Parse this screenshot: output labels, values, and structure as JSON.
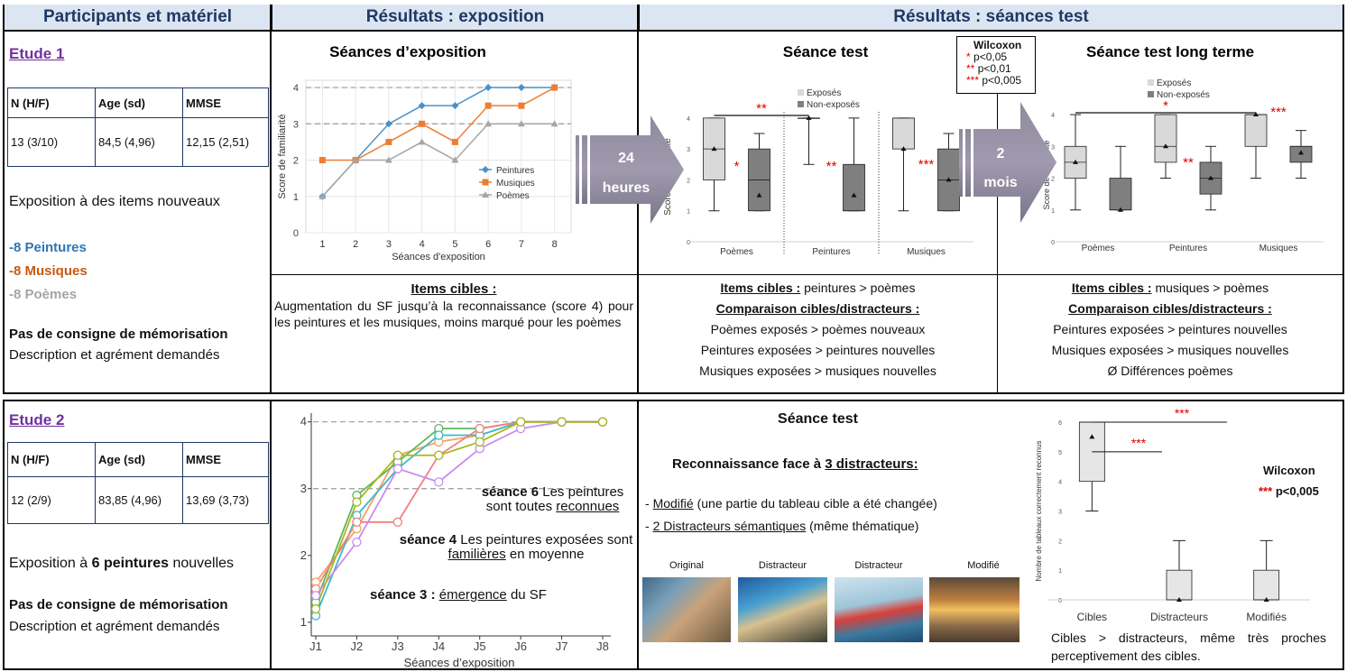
{
  "headers": {
    "participants": "Participants et matériel",
    "exposition": "Résultats : exposition",
    "tests": "Résultats : séances test"
  },
  "etude1": {
    "title": "Etude 1",
    "table": {
      "header": [
        "N (H/F)",
        "Age (sd)",
        "MMSE"
      ],
      "rows": [
        [
          "13 (3/10)",
          "84,5 (4,96)",
          "12,15 (2,51)"
        ]
      ]
    },
    "exposure": "Exposition à des items nouveaux",
    "items": [
      {
        "text": "-8 Peintures",
        "color": "#2e75b6"
      },
      {
        "text": "-8 Musiques",
        "color": "#c55a11"
      },
      {
        "text": "-8 Poèmes",
        "color": "#a5a5a5"
      }
    ],
    "instruction": "Pas de consigne de mémorisation",
    "task": "Description et agrément demandés"
  },
  "arrows": [
    {
      "lines": [
        "24",
        "heures"
      ]
    },
    {
      "lines": [
        "2",
        "mois"
      ]
    }
  ],
  "wilcoxon_legend": {
    "title": "Wilcoxon",
    "rows": [
      {
        "stars": "*",
        "text": "p<0,05"
      },
      {
        "stars": "**",
        "text": "p<0,01"
      },
      {
        "stars": "***",
        "text": "p<0,005"
      }
    ]
  },
  "conclusions": {
    "exposition": {
      "heading": "Items cibles :",
      "text": "Augmentation du SF jusqu’à la reconnaissance (score 4) pour les peintures et les musiques, moins marqué pour les poèmes"
    },
    "test": {
      "target_heading": "Items cibles :",
      "target_text": "peintures > poèmes",
      "comparison_heading": "Comparaison cibles/distracteurs :",
      "comparisons": [
        "Poèmes exposés > poèmes nouveaux",
        "Peintures exposées > peintures nouvelles",
        "Musiques exposées > musiques nouvelles"
      ]
    },
    "long_term": {
      "target_heading": "Items cibles :",
      "target_text": "musiques > poèmes",
      "comparison_heading": "Comparaison cibles/distracteurs :",
      "comparisons": [
        "Peintures exposées > peintures nouvelles",
        "Musiques exposées > musiques nouvelles",
        "Ø Différences poèmes"
      ]
    }
  },
  "etude2": {
    "title": "Etude 2",
    "table": {
      "header": [
        "N (H/F)",
        "Age (sd)",
        "MMSE"
      ],
      "rows": [
        [
          "12 (2/9)",
          "83,85 (4,96)",
          "13,69 (3,73)"
        ]
      ]
    },
    "exposure": {
      "before": "Exposition à",
      "bold": "6 peintures",
      "after": "nouvelles"
    },
    "instruction": "Pas de consigne de mémorisation",
    "task": "Description et agrément demandés",
    "test": {
      "title": "Séance test",
      "heading": {
        "text": "Reconnaissance face à",
        "underline": "3 distracteurs:"
      },
      "list": [
        {
          "bullet": "-",
          "underline": "Modifié",
          "text": "(une partie du tableau cible a été changée)"
        },
        {
          "bullet": "-",
          "underline": "2 Distracteurs sémantiques",
          "text": "(même thématique)"
        }
      ],
      "images": [
        {
          "caption": "Original"
        },
        {
          "caption": "Distracteur"
        },
        {
          "caption": "Distracteur"
        },
        {
          "caption": "Modifié"
        }
      ]
    },
    "wilcoxon": {
      "title": "Wilcoxon",
      "stars": "***",
      "text": "p<0,005"
    },
    "conclusion": "Cibles > distracteurs, même très proches perceptivement des cibles."
  },
  "chart_data": [
    {
      "type": "line",
      "title": "Séances d’exposition",
      "x_label": "Séances d'exposition",
      "y_label": "Score de familiarité",
      "x": [
        1,
        2,
        3,
        4,
        5,
        6,
        7,
        8
      ],
      "xlim": [
        0.5,
        8.5
      ],
      "xticks": [
        1,
        2,
        3,
        4,
        5,
        6,
        7,
        8
      ],
      "ylim": [
        0,
        4.2
      ],
      "yticks": [
        0,
        1,
        2,
        3,
        4
      ],
      "grid": true,
      "reference_lines": [
        3,
        4
      ],
      "legend": "right",
      "series": [
        {
          "name": "Peintures",
          "color": "#4a90c8",
          "marker": "diamond",
          "values": [
            1,
            2,
            3,
            3.5,
            3.5,
            4,
            4,
            4
          ]
        },
        {
          "name": "Musiques",
          "color": "#ed7d31",
          "marker": "square",
          "values": [
            2,
            2,
            2.5,
            3,
            2.5,
            3.5,
            3.5,
            4
          ]
        },
        {
          "name": "Poèmes",
          "color": "#a5a5a5",
          "marker": "triangle",
          "values": [
            1,
            2,
            2,
            2.5,
            2,
            3,
            3,
            3
          ]
        }
      ]
    },
    {
      "type": "box",
      "title": "Séance test",
      "y_label": "Score de familiarité",
      "categories": [
        "Poèmes",
        "Peintures",
        "Musiques"
      ],
      "ylim": [
        0,
        4.2
      ],
      "yticks": [
        0,
        1,
        2,
        3,
        4
      ],
      "series": [
        {
          "name": "Exposés",
          "color": "#d9d9d9",
          "values": [
            {
              "min": 1,
              "q1": 2,
              "median": 3,
              "q3": 4,
              "max": 4,
              "mean": 3
            },
            {
              "min": 2.5,
              "q1": 4,
              "median": 4,
              "q3": 4,
              "max": 4,
              "mean": 4
            },
            {
              "min": 1,
              "q1": 3,
              "median": 4,
              "q3": 4,
              "max": 4,
              "mean": 3
            }
          ]
        },
        {
          "name": "Non-exposés",
          "color": "#7f7f7f",
          "values": [
            {
              "min": 1,
              "q1": 1,
              "median": 2,
              "q3": 3,
              "max": 3.5,
              "mean": 1.5
            },
            {
              "min": 1,
              "q1": 1,
              "median": 1,
              "q3": 2.5,
              "max": 4,
              "mean": 1.5
            },
            {
              "min": 1,
              "q1": 1,
              "median": 2,
              "q3": 3,
              "max": 3.5,
              "mean": 2
            }
          ]
        }
      ],
      "significance": [
        "*",
        "**",
        "***"
      ],
      "bracket": "**"
    },
    {
      "type": "box",
      "title": "Séance test long terme",
      "y_label": "Score de familiarité",
      "categories": [
        "Poèmes",
        "Peintures",
        "Musiques"
      ],
      "ylim": [
        0,
        4.2
      ],
      "yticks": [
        0,
        1,
        2,
        3,
        4
      ],
      "series": [
        {
          "name": "Exposés",
          "color": "#d9d9d9",
          "values": [
            {
              "min": 1,
              "q1": 2,
              "median": 2.5,
              "q3": 3,
              "max": 4,
              "mean": 2.5
            },
            {
              "min": 2,
              "q1": 2.5,
              "median": 3,
              "q3": 4,
              "max": 4,
              "mean": 3
            },
            {
              "min": 2,
              "q1": 3,
              "median": 4,
              "q3": 4,
              "max": 4,
              "mean": 4
            }
          ]
        },
        {
          "name": "Non-exposés",
          "color": "#7f7f7f",
          "values": [
            {
              "min": 1,
              "q1": 1,
              "median": 1,
              "q3": 2,
              "max": 3,
              "mean": 1
            },
            {
              "min": 1,
              "q1": 1.5,
              "median": 2,
              "q3": 2.5,
              "max": 3,
              "mean": 2
            },
            {
              "min": 2,
              "q1": 2.5,
              "median": 3,
              "q3": 3,
              "max": 3.5,
              "mean": 2.8
            }
          ]
        }
      ],
      "significance": [
        null,
        "**",
        "***"
      ],
      "bracket": "*"
    },
    {
      "type": "line",
      "x_label": "Séances d’exposition",
      "categories": [
        "J1",
        "J2",
        "J3",
        "J4",
        "J5",
        "J6",
        "J7",
        "J8"
      ],
      "ylim": [
        0.85,
        4.05
      ],
      "yticks": [
        1,
        2,
        3,
        4
      ],
      "grid": false,
      "reference_lines": [
        3,
        4
      ],
      "series": [
        {
          "color": "#f4a460",
          "marker": "circle",
          "values": [
            1.6,
            2.4,
            3.5,
            3.7,
            3.8,
            4,
            4,
            4
          ]
        },
        {
          "color": "#5cb85c",
          "marker": "circle",
          "values": [
            1.3,
            2.9,
            3.4,
            3.9,
            3.9,
            4,
            4,
            4
          ]
        },
        {
          "color": "#3fb8c9",
          "marker": "circle",
          "values": [
            1.1,
            2.6,
            3.3,
            3.8,
            3.8,
            4,
            4,
            4
          ]
        },
        {
          "color": "#f08080",
          "marker": "circle",
          "values": [
            1.5,
            2.5,
            2.5,
            3.5,
            3.9,
            4,
            4,
            4
          ]
        },
        {
          "color": "#c88cf0",
          "marker": "circle",
          "values": [
            1.4,
            2.2,
            3.3,
            3.1,
            3.6,
            3.9,
            4,
            4
          ]
        },
        {
          "color": "#a8b820",
          "marker": "circle",
          "values": [
            1.2,
            2.8,
            3.5,
            3.5,
            3.7,
            4,
            4,
            4
          ]
        }
      ],
      "annotations": [
        {
          "bold": "séance 6",
          "text": "Les peintures sont toutes",
          "underline": "reconnues"
        },
        {
          "bold": "séance 4",
          "text": "Les peintures exposées sont",
          "underline": "familières",
          "end": "en moyenne"
        },
        {
          "bold": "séance 3 :",
          "underline": "émergence",
          "end": "du SF"
        }
      ]
    },
    {
      "type": "box",
      "y_label": "Nombre de tableaux correctement reconnus",
      "categories": [
        "Cibles",
        "Distracteurs",
        "Modifiés"
      ],
      "ylim": [
        0,
        6
      ],
      "yticks": [
        0,
        1,
        2,
        3,
        4,
        5,
        6
      ],
      "series": [
        {
          "color": "#e7e6e6",
          "values": [
            {
              "min": 3,
              "q1": 4,
              "median": 6,
              "q3": 6,
              "max": 6,
              "mean": 5.5
            },
            {
              "min": 0,
              "q1": 0,
              "median": 0,
              "q3": 1,
              "max": 2,
              "mean": 0
            },
            {
              "min": 0,
              "q1": 0,
              "median": 0,
              "q3": 1,
              "max": 2,
              "mean": 0
            }
          ]
        }
      ],
      "brackets": [
        "***",
        "***"
      ]
    }
  ]
}
